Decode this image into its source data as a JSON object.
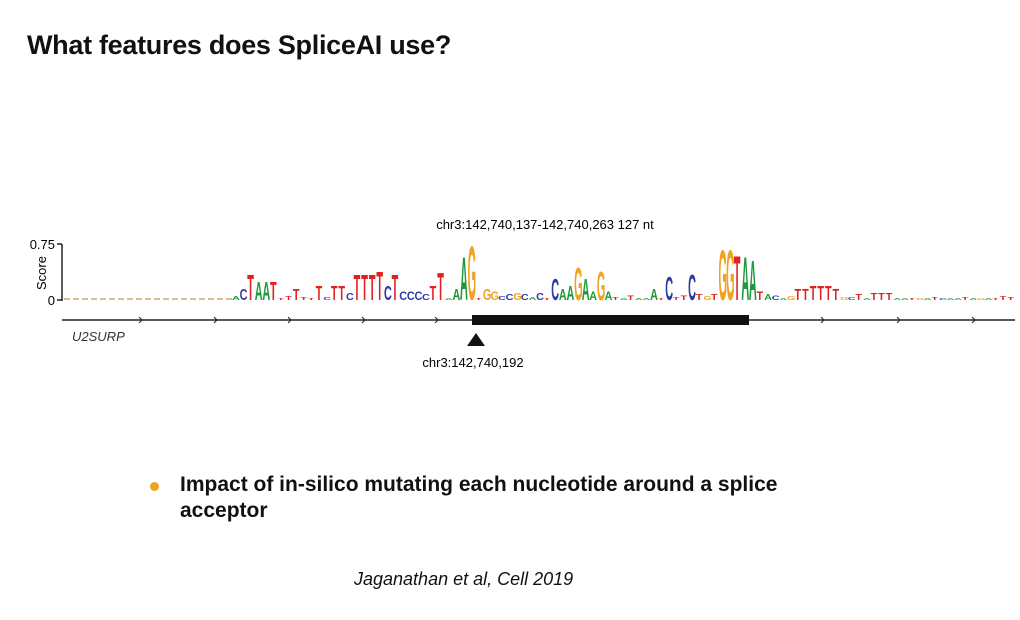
{
  "title": "What features does SpliceAI use?",
  "figure": {
    "region_label": "chr3:142,740,137-142,740,263  127 nt",
    "y_axis_label": "Score",
    "y_ticks": [
      "0.75",
      "0"
    ],
    "y_range": [
      0,
      0.75
    ],
    "gene_label": "U2SURP",
    "site_label": "chr3:142,740,192",
    "base_colors": {
      "A": "#1e9a3c",
      "C": "#2c3aa6",
      "G": "#f0a322",
      "T": "#e0211f"
    },
    "logo": [
      [
        "A",
        0.05
      ],
      [
        "C",
        0.15
      ],
      [
        "T",
        0.35
      ],
      [
        "A",
        0.25
      ],
      [
        "A",
        0.25
      ],
      [
        "T",
        0.25
      ],
      [
        "T",
        0.03
      ],
      [
        "T",
        0.05
      ],
      [
        "T",
        0.15
      ],
      [
        "T",
        0.04
      ],
      [
        "T",
        0.03
      ],
      [
        "T",
        0.2
      ],
      [
        "C",
        0.04
      ],
      [
        "T",
        0.2
      ],
      [
        "T",
        0.2
      ],
      [
        "C",
        0.1
      ],
      [
        "T",
        0.35
      ],
      [
        "T",
        0.35
      ],
      [
        "T",
        0.35
      ],
      [
        "T",
        0.4
      ],
      [
        "C",
        0.2
      ],
      [
        "T",
        0.35
      ],
      [
        "C",
        0.12
      ],
      [
        "C",
        0.12
      ],
      [
        "C",
        0.12
      ],
      [
        "C",
        0.08
      ],
      [
        "T",
        0.2
      ],
      [
        "T",
        0.38
      ],
      [
        "A",
        0.03
      ],
      [
        "A",
        0.15
      ],
      [
        "A",
        0.6
      ],
      [
        "G",
        0.75
      ],
      [
        "T",
        0.03
      ],
      [
        "G",
        0.15
      ],
      [
        "G",
        0.12
      ],
      [
        "C",
        0.05
      ],
      [
        "C",
        0.08
      ],
      [
        "G",
        0.1
      ],
      [
        "C",
        0.08
      ],
      [
        "A",
        0.04
      ],
      [
        "C",
        0.1
      ],
      [
        "T",
        0.03
      ],
      [
        "C",
        0.3
      ],
      [
        "A",
        0.15
      ],
      [
        "A",
        0.2
      ],
      [
        "G",
        0.45
      ],
      [
        "A",
        0.3
      ],
      [
        "A",
        0.12
      ],
      [
        "G",
        0.4
      ],
      [
        "A",
        0.12
      ],
      [
        "T",
        0.04
      ],
      [
        "A",
        0.03
      ],
      [
        "T",
        0.06
      ],
      [
        "A",
        0.03
      ],
      [
        "A",
        0.03
      ],
      [
        "A",
        0.15
      ],
      [
        "T",
        0.03
      ],
      [
        "C",
        0.33
      ],
      [
        "T",
        0.04
      ],
      [
        "T",
        0.06
      ],
      [
        "C",
        0.35
      ],
      [
        "T",
        0.08
      ],
      [
        "G",
        0.05
      ],
      [
        "T",
        0.08
      ],
      [
        "G",
        0.7
      ],
      [
        "G",
        0.7
      ],
      [
        "T",
        0.62
      ],
      [
        "A",
        0.6
      ],
      [
        "A",
        0.55
      ],
      [
        "T",
        0.12
      ],
      [
        "A",
        0.08
      ],
      [
        "C",
        0.06
      ],
      [
        "A",
        0.03
      ],
      [
        "G",
        0.05
      ],
      [
        "T",
        0.15
      ],
      [
        "T",
        0.15
      ],
      [
        "T",
        0.2
      ],
      [
        "T",
        0.2
      ],
      [
        "T",
        0.2
      ],
      [
        "T",
        0.15
      ],
      [
        "G",
        0.04
      ],
      [
        "C",
        0.04
      ],
      [
        "T",
        0.08
      ],
      [
        "A",
        0.03
      ],
      [
        "T",
        0.1
      ],
      [
        "T",
        0.1
      ],
      [
        "T",
        0.1
      ],
      [
        "A",
        0.03
      ],
      [
        "A",
        0.03
      ],
      [
        "T",
        0.03
      ],
      [
        "G",
        0.03
      ],
      [
        "A",
        0.03
      ],
      [
        "T",
        0.04
      ],
      [
        "C",
        0.03
      ],
      [
        "A",
        0.03
      ],
      [
        "A",
        0.03
      ],
      [
        "T",
        0.04
      ],
      [
        "A",
        0.03
      ],
      [
        "G",
        0.03
      ],
      [
        "A",
        0.03
      ],
      [
        "T",
        0.03
      ],
      [
        "T",
        0.05
      ],
      [
        "T",
        0.04
      ]
    ]
  },
  "bullet": {
    "text": "Impact of in-silico mutating each nucleotide around a splice acceptor",
    "color": "#f0a322"
  },
  "citation": "Jaganathan et al, Cell 2019"
}
